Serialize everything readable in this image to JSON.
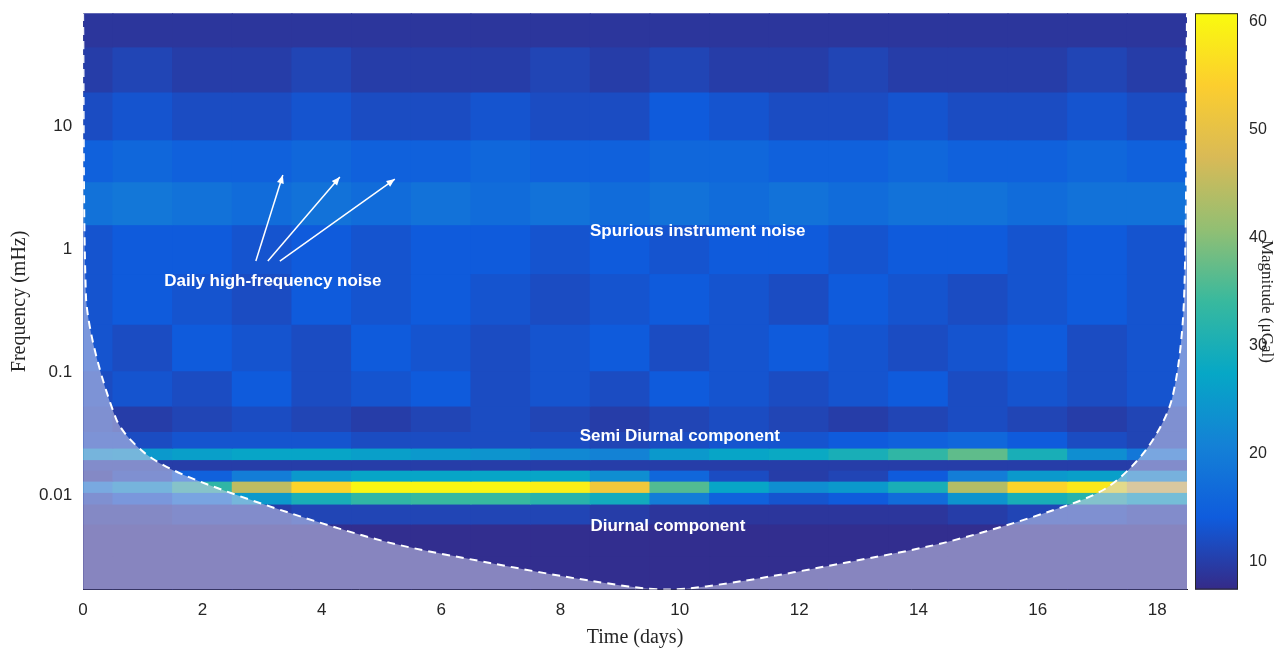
{
  "chart_data": {
    "type": "heatmap",
    "x_label": "Time (days)",
    "y_label": "Frequency (mHz)",
    "xlim": [
      0,
      18.5
    ],
    "xticks": [
      0,
      2,
      4,
      6,
      8,
      10,
      12,
      14,
      16,
      18
    ],
    "ylim": [
      0.0017,
      83
    ],
    "yticks": [
      0.01,
      0.1,
      1,
      10
    ],
    "log": "y",
    "grid": false,
    "cells": {
      "x": [
        0,
        1,
        2,
        3,
        4,
        5,
        6,
        7,
        8,
        9,
        10,
        11,
        12,
        13,
        14,
        15,
        16,
        17,
        18
      ],
      "y": [
        0.0023,
        0.0045,
        0.0075,
        0.0095,
        0.0116,
        0.0145,
        0.0175,
        0.0215,
        0.027,
        0.04,
        0.07,
        0.15,
        0.4,
        1,
        2.5,
        5,
        12,
        30,
        65
      ],
      "values": [
        [
          8,
          8,
          8,
          8,
          8,
          8,
          8,
          8,
          8,
          8,
          8,
          8,
          8,
          8,
          8,
          8,
          8,
          8,
          8
        ],
        [
          8,
          8,
          8,
          8,
          8,
          8,
          8,
          8,
          8,
          8,
          8,
          8,
          8,
          8,
          8,
          8,
          8,
          8,
          8
        ],
        [
          9,
          9,
          10,
          10,
          11,
          11,
          11,
          11,
          11,
          10,
          9,
          9,
          9,
          9,
          9,
          10,
          11,
          11,
          10
        ],
        [
          11,
          13,
          18,
          25,
          30,
          33,
          34,
          34,
          32,
          29,
          20,
          15,
          13,
          14,
          17,
          24,
          30,
          32,
          28
        ],
        [
          20,
          24,
          33,
          45,
          55,
          60,
          60,
          60,
          59,
          52,
          36,
          27,
          23,
          25,
          30,
          44,
          55,
          58,
          50
        ],
        [
          9,
          11,
          15,
          20,
          25,
          27,
          27,
          27,
          27,
          23,
          16,
          12,
          10,
          11,
          14,
          20,
          25,
          26,
          23
        ],
        [
          10,
          10,
          10,
          10,
          10,
          10,
          10,
          10,
          10,
          10,
          10,
          10,
          10,
          10,
          10,
          10,
          10,
          10,
          10
        ],
        [
          24,
          25,
          26,
          27,
          27,
          26,
          25,
          24,
          22,
          21,
          25,
          27,
          28,
          30,
          33,
          37,
          30,
          23,
          19
        ],
        [
          12,
          12,
          13,
          13,
          13,
          12,
          12,
          12,
          12,
          11,
          12,
          13,
          13,
          14,
          15,
          16,
          14,
          12,
          11
        ],
        [
          11,
          10,
          11,
          12,
          11,
          10,
          11,
          12,
          11,
          10,
          11,
          12,
          11,
          10,
          11,
          12,
          11,
          10,
          11
        ],
        [
          12,
          13,
          12,
          14,
          12,
          13,
          14,
          12,
          13,
          12,
          14,
          13,
          12,
          13,
          14,
          12,
          13,
          12,
          13
        ],
        [
          13,
          12,
          14,
          13,
          12,
          14,
          13,
          12,
          13,
          14,
          12,
          13,
          14,
          13,
          12,
          13,
          14,
          12,
          13
        ],
        [
          13,
          14,
          13,
          12,
          14,
          13,
          14,
          13,
          12,
          13,
          14,
          13,
          12,
          14,
          13,
          12,
          13,
          14,
          13
        ],
        [
          13,
          14,
          14,
          13,
          14,
          13,
          14,
          14,
          13,
          14,
          13,
          14,
          14,
          13,
          14,
          14,
          13,
          14,
          13
        ],
        [
          18,
          19,
          18,
          17,
          18,
          17,
          18,
          17,
          18,
          17,
          18,
          17,
          18,
          17,
          18,
          18,
          17,
          18,
          18
        ],
        [
          15,
          16,
          15,
          15,
          16,
          15,
          15,
          16,
          15,
          15,
          16,
          16,
          15,
          15,
          16,
          15,
          15,
          16,
          15
        ],
        [
          12,
          13,
          12,
          12,
          13,
          12,
          12,
          13,
          12,
          12,
          14,
          13,
          12,
          12,
          13,
          12,
          12,
          13,
          12
        ],
        [
          10,
          11,
          10,
          10,
          11,
          10,
          10,
          10,
          11,
          10,
          11,
          10,
          10,
          11,
          10,
          10,
          10,
          11,
          10
        ],
        [
          9,
          9,
          9,
          9,
          9,
          9,
          9,
          9,
          9,
          9,
          9,
          9,
          9,
          9,
          9,
          9,
          9,
          9,
          9
        ]
      ]
    },
    "colorbar": {
      "label": "Magnitude (μGal)",
      "range": [
        7.4,
        60.8
      ],
      "ticks": [
        10,
        20,
        30,
        40,
        50,
        60
      ]
    },
    "cone_of_influence": {
      "x": [
        0,
        0.05,
        0.55,
        1.03,
        1.74,
        3.44,
        5.13,
        6.82,
        8.52,
        9.79,
        11.06,
        12.75,
        14.44,
        16.14,
        17.15,
        17.83,
        18.25,
        18.45,
        18.5
      ],
      "y": [
        83,
        0.39,
        0.042,
        0.022,
        0.0142,
        0.0072,
        0.0041,
        0.0028,
        0.002,
        0.0017,
        0.002,
        0.0028,
        0.0041,
        0.0072,
        0.0114,
        0.0239,
        0.061,
        0.39,
        83
      ],
      "color": "#ffffff",
      "line_style": "dashed"
    },
    "annotations": [
      {
        "text": "Spurious instrument noise",
        "x": 10.3,
        "y": 1.4
      },
      {
        "text": "Semi Diurnal component",
        "x": 10.0,
        "y": 0.03
      },
      {
        "text": "Diurnal component",
        "x": 9.8,
        "y": 0.0056
      },
      {
        "text": "Daily high-frequency noise",
        "x": 3.18,
        "y": 0.55,
        "arrows": true
      }
    ]
  }
}
